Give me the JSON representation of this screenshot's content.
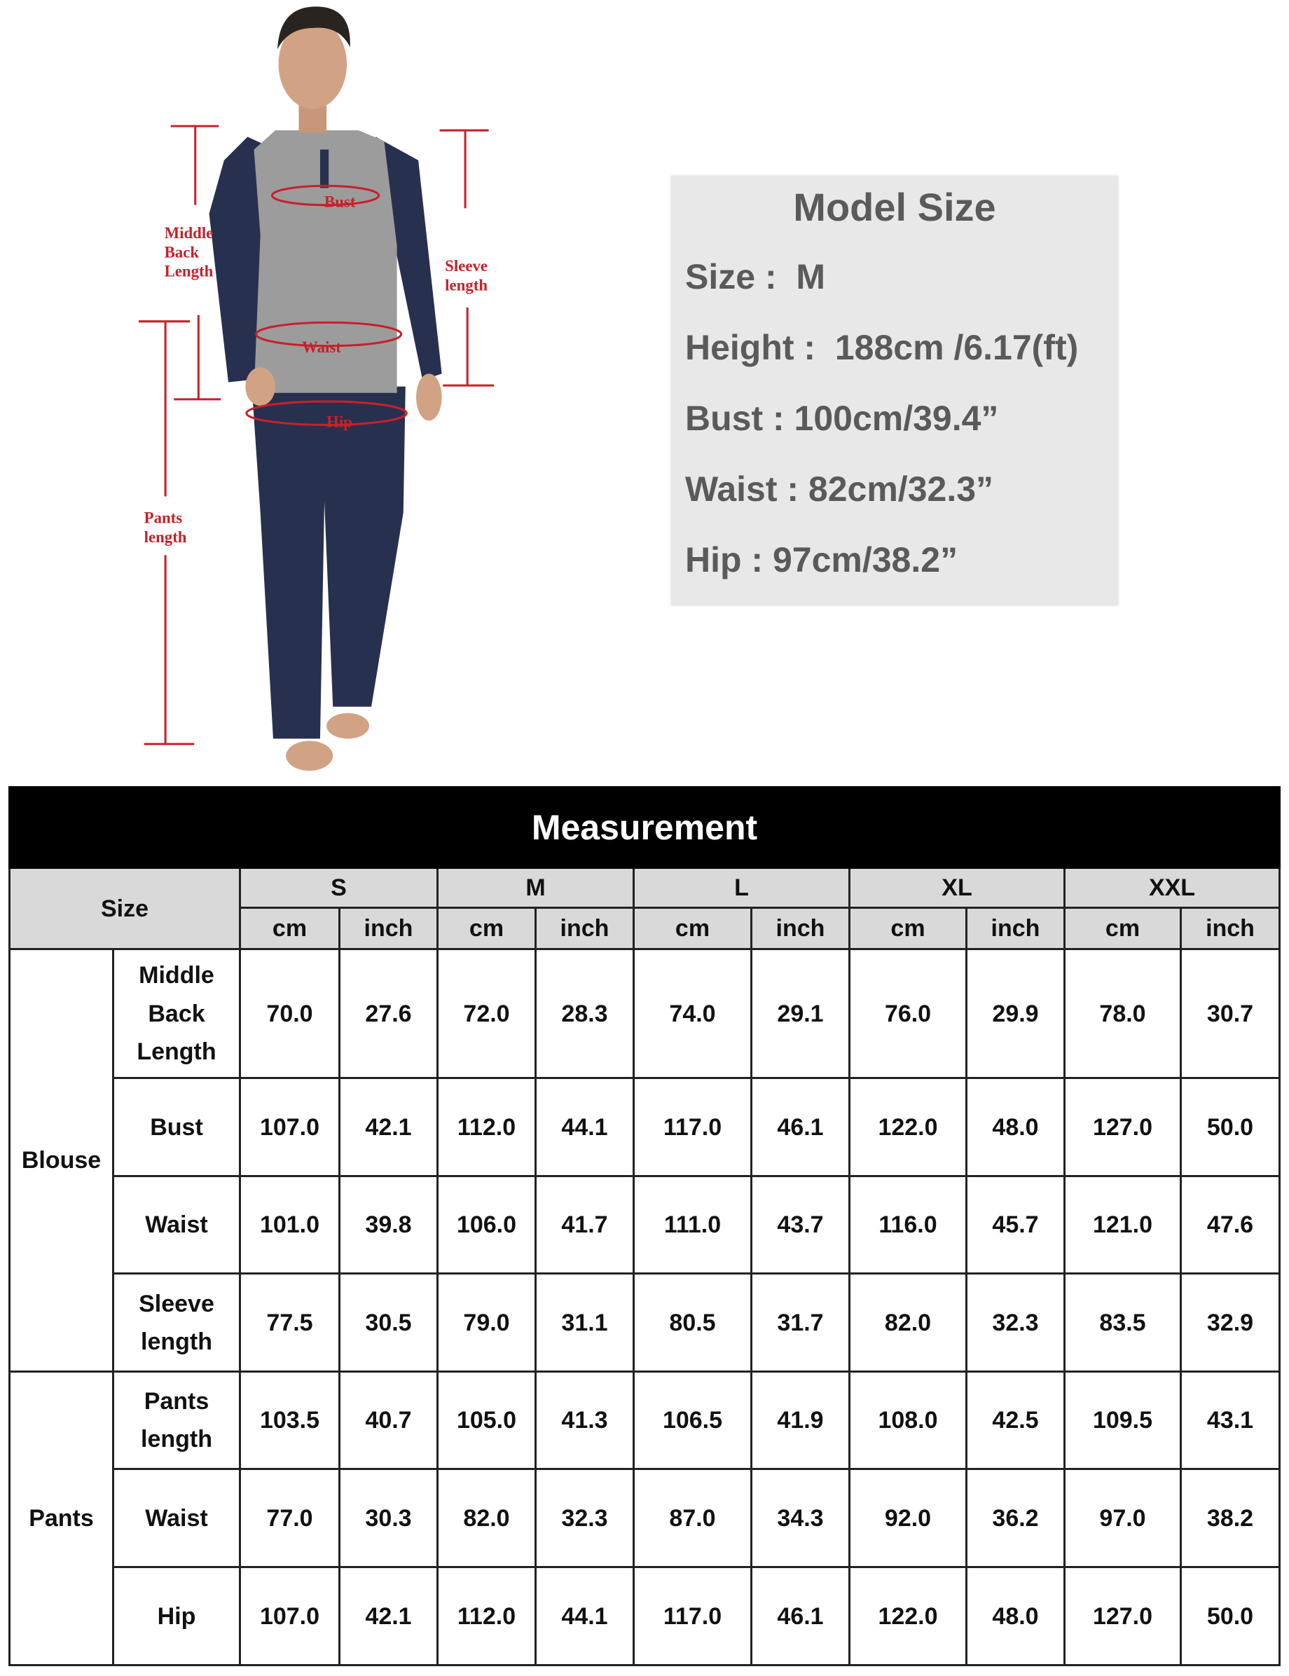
{
  "figure": {
    "labels": {
      "bust": "Bust",
      "middle_back_length": [
        "Middle",
        "Back",
        "Length"
      ],
      "sleeve_length": [
        "Sleeve",
        "length"
      ],
      "waist": "Waist",
      "hip": "Hip",
      "pants_length": [
        "Pants",
        "length"
      ]
    },
    "colors": {
      "marker": "#c8202a",
      "shirt": "#9c9c9c",
      "navy": "#28304f"
    }
  },
  "model_size": {
    "title": "Model Size",
    "lines": [
      "Size :  M",
      "Height :  188cm /6.17(ft)",
      "Bust : 100cm/39.4”",
      "Waist : 82cm/32.3”",
      "Hip : 97cm/38.2”"
    ]
  },
  "table": {
    "title": "Measurement",
    "size_label": "Size",
    "sizes": [
      "S",
      "M",
      "L",
      "XL",
      "XXL"
    ],
    "units": [
      "cm",
      "inch"
    ],
    "groups": [
      {
        "name": "Blouse",
        "rows": [
          {
            "label": "Middle Back Length",
            "values": [
              "70.0",
              "27.6",
              "72.0",
              "28.3",
              "74.0",
              "29.1",
              "76.0",
              "29.9",
              "78.0",
              "30.7"
            ]
          },
          {
            "label": "Bust",
            "values": [
              "107.0",
              "42.1",
              "112.0",
              "44.1",
              "117.0",
              "46.1",
              "122.0",
              "48.0",
              "127.0",
              "50.0"
            ]
          },
          {
            "label": "Waist",
            "values": [
              "101.0",
              "39.8",
              "106.0",
              "41.7",
              "111.0",
              "43.7",
              "116.0",
              "45.7",
              "121.0",
              "47.6"
            ]
          },
          {
            "label": "Sleeve length",
            "values": [
              "77.5",
              "30.5",
              "79.0",
              "31.1",
              "80.5",
              "31.7",
              "82.0",
              "32.3",
              "83.5",
              "32.9"
            ]
          }
        ]
      },
      {
        "name": "Pants",
        "rows": [
          {
            "label": "Pants length",
            "values": [
              "103.5",
              "40.7",
              "105.0",
              "41.3",
              "106.5",
              "41.9",
              "108.0",
              "42.5",
              "109.5",
              "43.1"
            ]
          },
          {
            "label": "Waist",
            "values": [
              "77.0",
              "30.3",
              "82.0",
              "32.3",
              "87.0",
              "34.3",
              "92.0",
              "36.2",
              "97.0",
              "38.2"
            ]
          },
          {
            "label": "Hip",
            "values": [
              "107.0",
              "42.1",
              "112.0",
              "44.1",
              "117.0",
              "46.1",
              "122.0",
              "48.0",
              "127.0",
              "50.0"
            ]
          }
        ]
      }
    ]
  }
}
